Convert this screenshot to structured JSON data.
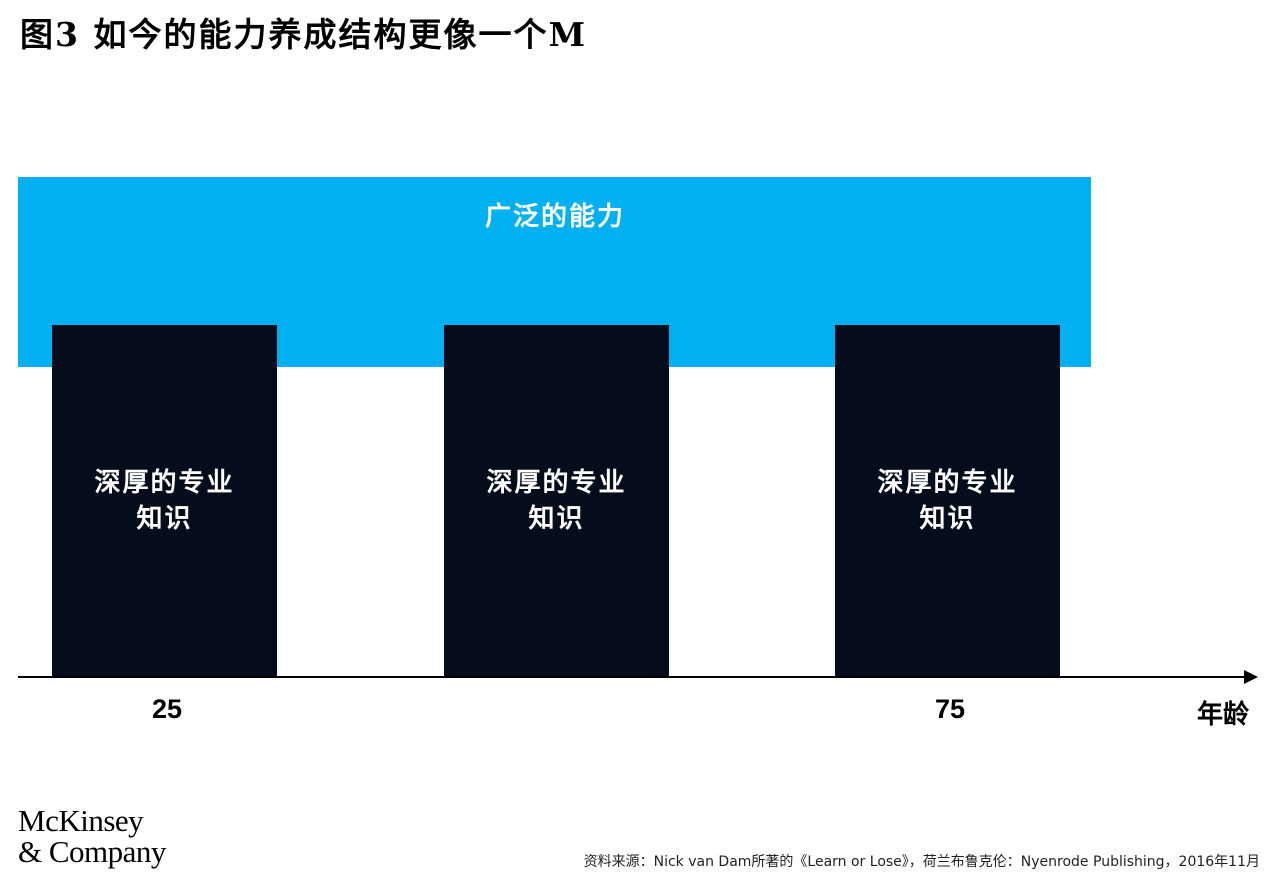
{
  "title": "图3 如今的能力养成结构更像一个M",
  "diagram": {
    "broad_label": "广泛的能力",
    "pillars": [
      {
        "label_line1": "深厚的专业",
        "label_line2": "知识"
      },
      {
        "label_line1": "深厚的专业",
        "label_line2": "知识"
      },
      {
        "label_line1": "深厚的专业",
        "label_line2": "知识"
      }
    ],
    "axis": {
      "ticks": [
        "25",
        "75"
      ],
      "unit": "年龄"
    }
  },
  "logo": {
    "line1": "McKinsey",
    "line2": "& Company"
  },
  "source": "资料来源：Nick van Dam所著的《Learn or Lose》，荷兰布鲁克伦：Nyenrode Publishing，2016年11月",
  "colors": {
    "band": "#00b0f0",
    "pillar": "#050d1c",
    "text_on_dark": "#ffffff"
  }
}
